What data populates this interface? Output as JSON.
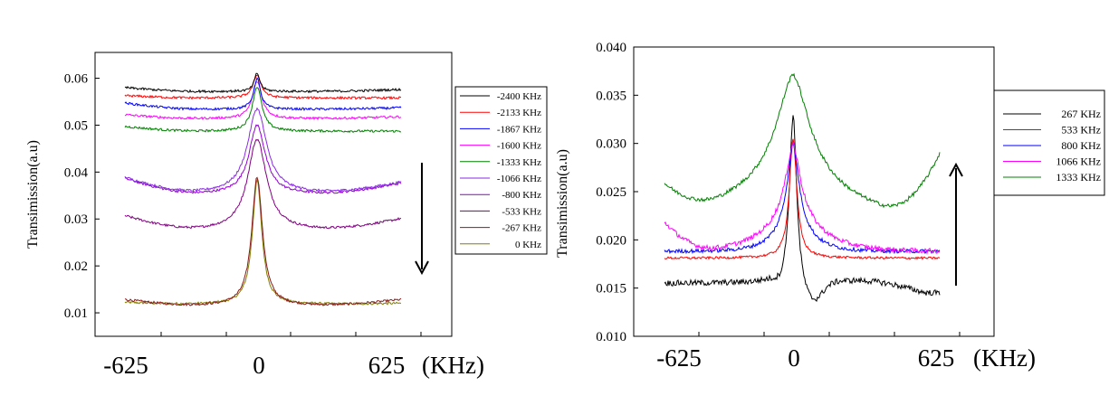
{
  "chart_data": [
    {
      "type": "line",
      "xlabel_unit": "(KHz)",
      "ylabel": "Transimission(a.u)",
      "xlim": [
        -625,
        625
      ],
      "ylim": [
        0.005,
        0.0655
      ],
      "yticks": [
        0.01,
        0.02,
        0.03,
        0.04,
        0.05,
        0.06
      ],
      "ytick_labels": [
        "0.01",
        "0.02",
        "0.03",
        "0.04",
        "0.05",
        "0.06"
      ],
      "xtick_labels": [
        {
          "value": -625,
          "label": "-625"
        },
        {
          "value": 0,
          "label": "0"
        },
        {
          "value": 625,
          "label": "625"
        }
      ],
      "x_minor_ticks": [
        -625,
        -375,
        -125,
        125,
        375,
        625
      ],
      "data_x_range": [
        -510,
        550
      ],
      "legend_position": "right",
      "arrow_direction": "down",
      "series": [
        {
          "name": "-2400 KHz",
          "color": "#000000",
          "base_left": 0.058,
          "base_mid": 0.0572,
          "base_right": 0.0576,
          "peak": 0.0611,
          "width": 0.002
        },
        {
          "name": "-2133 KHz",
          "color": "#ff0000",
          "base_left": 0.0563,
          "base_mid": 0.0558,
          "base_right": 0.0558,
          "peak": 0.0607,
          "width": 0.003
        },
        {
          "name": "-1867 KHz",
          "color": "#0000ff",
          "base_left": 0.0547,
          "base_mid": 0.0534,
          "base_right": 0.0537,
          "peak": 0.06,
          "width": 0.0025
        },
        {
          "name": "-1600 KHz",
          "color": "#ff00ff",
          "base_left": 0.0522,
          "base_mid": 0.0514,
          "base_right": 0.0518,
          "peak": 0.0593,
          "width": 0.0035
        },
        {
          "name": "-1333 KHz",
          "color": "#008000",
          "base_left": 0.0497,
          "base_mid": 0.0487,
          "base_right": 0.0487,
          "peak": 0.0582,
          "width": 0.0035
        },
        {
          "name": "-1066 KHz",
          "color": "#8a2be2",
          "base_left": 0.0388,
          "base_mid": 0.0355,
          "base_right": 0.0378,
          "peak": 0.0535,
          "width": 0.007
        },
        {
          "name": "-800 KHz",
          "color": "#9400d3",
          "base_left": 0.0386,
          "base_mid": 0.0353,
          "base_right": 0.0376,
          "peak": 0.05,
          "width": 0.006
        },
        {
          "name": "-533 KHz",
          "color": "#800080",
          "base_left": 0.0306,
          "base_mid": 0.0276,
          "base_right": 0.03,
          "peak": 0.047,
          "width": 0.007
        },
        {
          "name": "-267 KHz",
          "color": "#8b1a1a",
          "base_left": 0.0128,
          "base_mid": 0.0115,
          "base_right": 0.0128,
          "peak": 0.039,
          "width": 0.004
        },
        {
          "name": "0 KHz",
          "color": "#808000",
          "base_left": 0.0122,
          "base_mid": 0.0118,
          "base_right": 0.012,
          "peak": 0.0382,
          "width": 0.0035
        }
      ]
    },
    {
      "type": "line",
      "xlabel_unit": "(KHz)",
      "ylabel": "Transimission(a.u)",
      "xlim": [
        -875,
        1375
      ],
      "ylim": [
        0.01,
        0.04
      ],
      "yticks": [
        0.01,
        0.015,
        0.02,
        0.025,
        0.03,
        0.035,
        0.04
      ],
      "ytick_labels": [
        "0.010",
        "0.015",
        "0.020",
        "0.025",
        "0.030",
        "0.035",
        "0.040"
      ],
      "xtick_labels": [
        {
          "value": -625,
          "label": "-625"
        },
        {
          "value": 0,
          "label": "0"
        },
        {
          "value": 625,
          "label": "625"
        }
      ],
      "x_minor_ticks": [
        -625,
        -375,
        0,
        375,
        625,
        1000
      ],
      "data_x_range": [
        -625,
        625
      ],
      "legend_position": "right",
      "arrow_direction": "up",
      "series": [
        {
          "name": "267 KHz",
          "color": "#000000"
        },
        {
          "name": "533 KHz",
          "color": "#ff0000"
        },
        {
          "name": "800 KHz",
          "color": "#0000ff"
        },
        {
          "name": "1066 KHz",
          "color": "#ff00ff"
        },
        {
          "name": "1333 KHz",
          "color": "#008000"
        }
      ]
    }
  ]
}
